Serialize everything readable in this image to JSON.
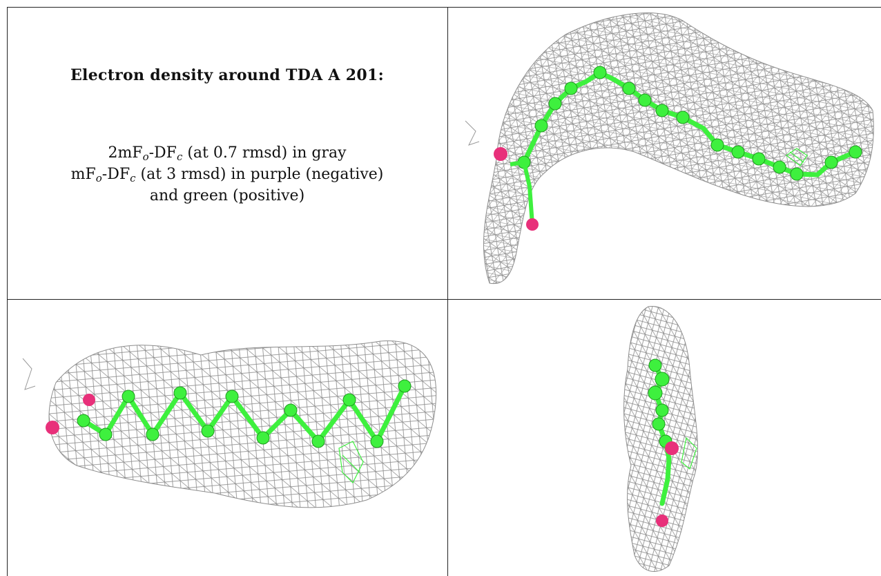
{
  "caption": {
    "title": "Electron density around TDA A 201:",
    "map1": {
      "prefix": "2mF",
      "sub1": "o",
      "mid": "-DF",
      "sub2": "c",
      "rest": " (at 0.7 rmsd) in gray"
    },
    "map2": {
      "prefix": "mF",
      "sub1": "o",
      "mid": "-DF",
      "sub2": "c",
      "rest": " (at 3 rmsd) in purple (negative)"
    },
    "map3": "and green (positive)"
  },
  "colors": {
    "mesh_2fofc": "#8c8c8c",
    "carbon": "#3ef03e",
    "oxygen": "#e8307a",
    "difference_positive": "#3ef03e",
    "grid_line": "#222222"
  }
}
